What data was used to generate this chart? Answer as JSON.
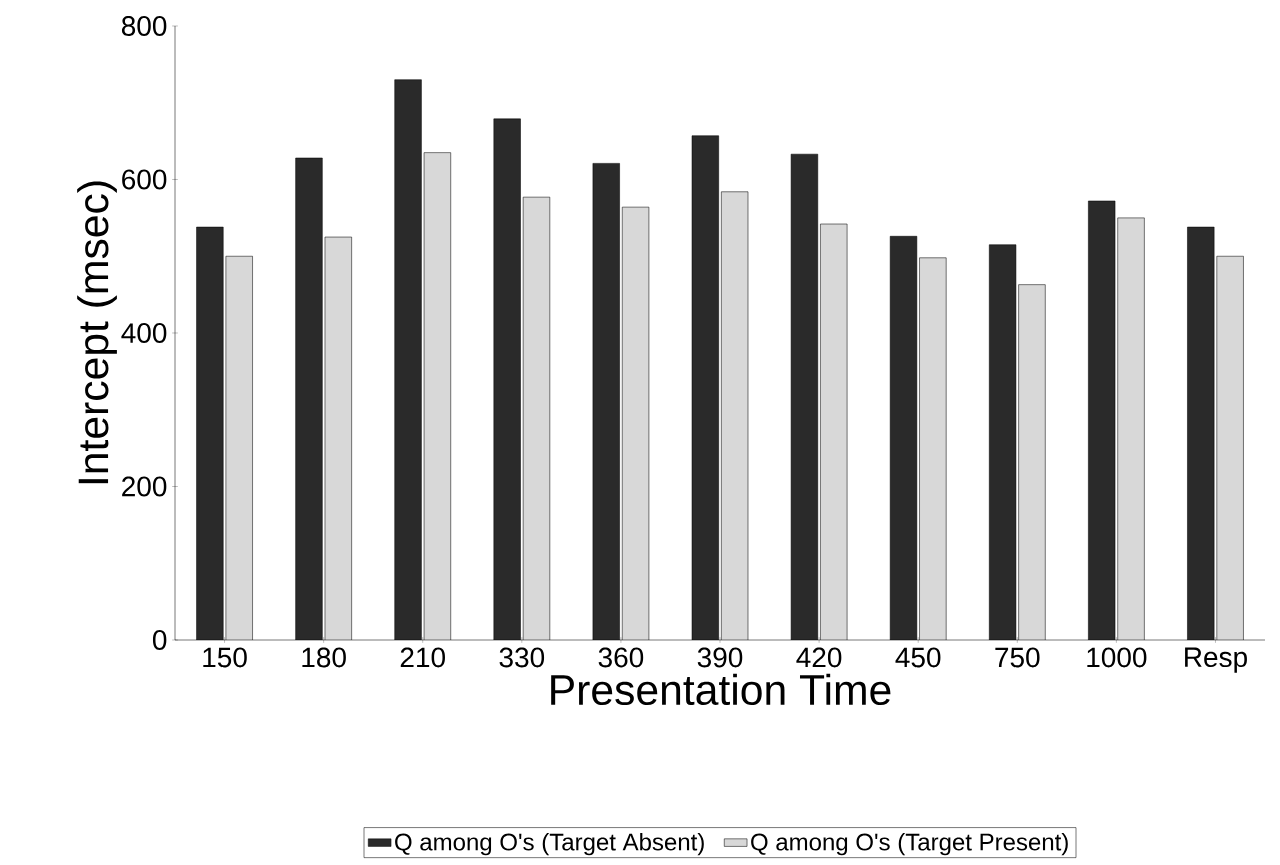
{
  "chart_data": {
    "type": "bar",
    "xlabel": "Presentation Time",
    "ylabel": "Intercept (msec)",
    "categories": [
      "150",
      "180",
      "210",
      "330",
      "360",
      "390",
      "420",
      "450",
      "750",
      "1000",
      "Resp"
    ],
    "series": [
      {
        "name": "Q among O's (Target Absent)",
        "color": "#2a2a2a",
        "values": [
          538,
          628,
          730,
          679,
          621,
          657,
          633,
          526,
          515,
          572,
          538
        ]
      },
      {
        "name": "Q among O's (Target Present)",
        "color": "#d8d8d8",
        "values": [
          500,
          525,
          635,
          577,
          564,
          584,
          542,
          498,
          463,
          550,
          500
        ]
      }
    ],
    "ylim": [
      0,
      800
    ],
    "yticks": [
      0,
      200,
      400,
      600,
      800
    ],
    "legend": "bottom"
  }
}
